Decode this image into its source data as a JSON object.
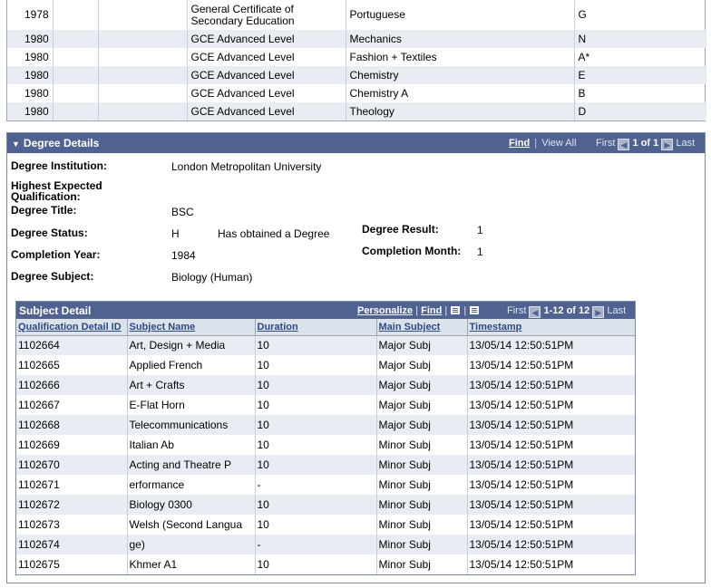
{
  "qualifications": [
    {
      "year": "1978",
      "level": "General Certificate of Secondary Education",
      "subject": "Portuguese",
      "grade": "G"
    },
    {
      "year": "1980",
      "level": "GCE Advanced Level",
      "subject": "Mechanics",
      "grade": "N"
    },
    {
      "year": "1980",
      "level": "GCE Advanced Level",
      "subject": "Fashion + Textiles",
      "grade": "A*"
    },
    {
      "year": "1980",
      "level": "GCE Advanced Level",
      "subject": "Chemistry",
      "grade": "E"
    },
    {
      "year": "1980",
      "level": "GCE Advanced Level",
      "subject": "Chemistry A",
      "grade": "B"
    },
    {
      "year": "1980",
      "level": "GCE Advanced Level",
      "subject": "Theology",
      "grade": "D"
    }
  ],
  "degree": {
    "panel_title": "Degree Details",
    "nav": {
      "find": "Find",
      "separator": "|",
      "view_all": "View All",
      "first": "First",
      "count": "1 of 1",
      "last": "Last"
    },
    "labels": {
      "institution": "Degree Institution:",
      "highest_expected": "Highest Expected Qualification:",
      "title": "Degree Title:",
      "status": "Degree Status:",
      "completion_year": "Completion Year:",
      "subject": "Degree Subject:",
      "result": "Degree Result:",
      "completion_month": "Completion Month:"
    },
    "values": {
      "institution": "London Metropolitan University",
      "title": "BSC",
      "status_code": "H",
      "status_text": "Has obtained a Degree",
      "completion_year": "1984",
      "subject": "Biology (Human)",
      "result": "1",
      "completion_month": "1"
    }
  },
  "subject_detail": {
    "title": "Subject Detail",
    "nav": {
      "personalize": "Personalize",
      "separator": "|",
      "find": "Find",
      "first": "First",
      "count": "1-12 of 12",
      "last": "Last"
    },
    "columns": [
      "Qualification Detail ID",
      "Subject Name",
      "Duration",
      "Main Subject",
      "Timestamp"
    ],
    "rows": [
      [
        "1102664",
        "Art, Design + Media",
        "10",
        "Major Subj",
        "13/05/14 12:50:51PM"
      ],
      [
        "1102665",
        "Applied French",
        "10",
        "Major Subj",
        "13/05/14 12:50:51PM"
      ],
      [
        "1102666",
        "Art + Crafts",
        "10",
        "Major Subj",
        "13/05/14 12:50:51PM"
      ],
      [
        "1102667",
        "E-Flat Horn",
        "10",
        "Major Subj",
        "13/05/14 12:50:51PM"
      ],
      [
        "1102668",
        "Telecommunications",
        "10",
        "Major Subj",
        "13/05/14 12:50:51PM"
      ],
      [
        "1102669",
        "Italian Ab",
        "10",
        "Minor Subj",
        "13/05/14 12:50:51PM"
      ],
      [
        "1102670",
        "Acting and Theatre P",
        "10",
        "Minor Subj",
        "13/05/14 12:50:51PM"
      ],
      [
        "1102671",
        "erformance",
        "-",
        "Minor Subj",
        "13/05/14 12:50:51PM"
      ],
      [
        "1102672",
        "Biology 0300",
        "10",
        "Minor Subj",
        "13/05/14 12:50:51PM"
      ],
      [
        "1102673",
        "Welsh (Second Langua",
        "10",
        "Minor Subj",
        "13/05/14 12:50:51PM"
      ],
      [
        "1102674",
        "ge)",
        "-",
        "Minor Subj",
        "13/05/14 12:50:51PM"
      ],
      [
        "1102675",
        "Khmer A1",
        "10",
        "Minor Subj",
        "13/05/14 12:50:51PM"
      ]
    ]
  }
}
